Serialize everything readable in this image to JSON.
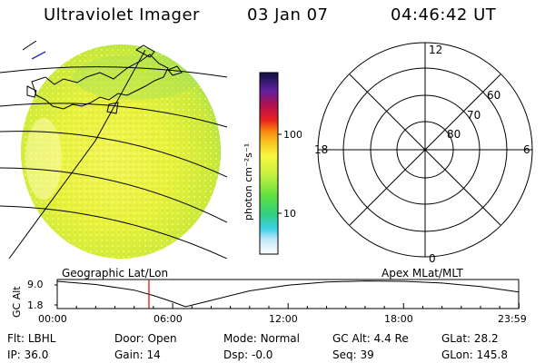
{
  "header": {
    "instrument": "Ultraviolet Imager",
    "date": "03 Jan 07",
    "time": "04:46:42 UT"
  },
  "colorbar": {
    "unit_label": "photon cm⁻²s⁻¹",
    "ticks": [
      "100",
      "10"
    ]
  },
  "polar_plot": {
    "mlt_labels": {
      "top": "12",
      "right": "6",
      "bottom": "0",
      "left": "18"
    },
    "lat_labels": [
      "60",
      "70",
      "80"
    ]
  },
  "timeline": {
    "left_title": "Geographic Lat/Lon",
    "right_title": "Apex MLat/MLT",
    "y_label": "GC Alt",
    "y_ticks": [
      "9.0",
      "1.8"
    ],
    "x_ticks": [
      "00:00",
      "06:00",
      "12:00",
      "18:00",
      "23:59"
    ],
    "current_time_marker": "04:46"
  },
  "chart_data": {
    "type": "line",
    "title": "",
    "xlabel": "",
    "ylabel": "GC Alt",
    "xlim": [
      "00:00",
      "23:59"
    ],
    "ylim": [
      1.8,
      9.0
    ],
    "series": [
      {
        "x": [
          "00:00",
          "02:00",
          "04:00",
          "05:00",
          "06:00",
          "06:40",
          "08:00",
          "10:00",
          "12:00",
          "14:00",
          "16:00",
          "18:00",
          "20:00",
          "22:00",
          "23:59"
        ],
        "y": [
          9.0,
          8.1,
          6.5,
          5.0,
          3.2,
          1.8,
          3.6,
          6.3,
          7.9,
          8.8,
          9.1,
          9.0,
          8.5,
          7.5,
          6.0
        ]
      }
    ],
    "marker_time": "04:46"
  },
  "status": {
    "filter_label": "Flt:",
    "filter_value": "LBHL",
    "door_label": "Door:",
    "door_value": "Open",
    "mode_label": "Mode:",
    "mode_value": "Normal",
    "gc_alt_label": "GC Alt:",
    "gc_alt_value": "4.4 Re",
    "glat_label": "GLat:",
    "glat_value": "28.2",
    "ip_label": "IP:",
    "ip_value": "36.0",
    "gain_label": "Gain:",
    "gain_value": "14",
    "dsp_label": "Dsp:",
    "dsp_value": "-0.0",
    "seq_label": "Seq:",
    "seq_value": "39",
    "glon_label": "GLon:",
    "glon_value": "145.8"
  }
}
